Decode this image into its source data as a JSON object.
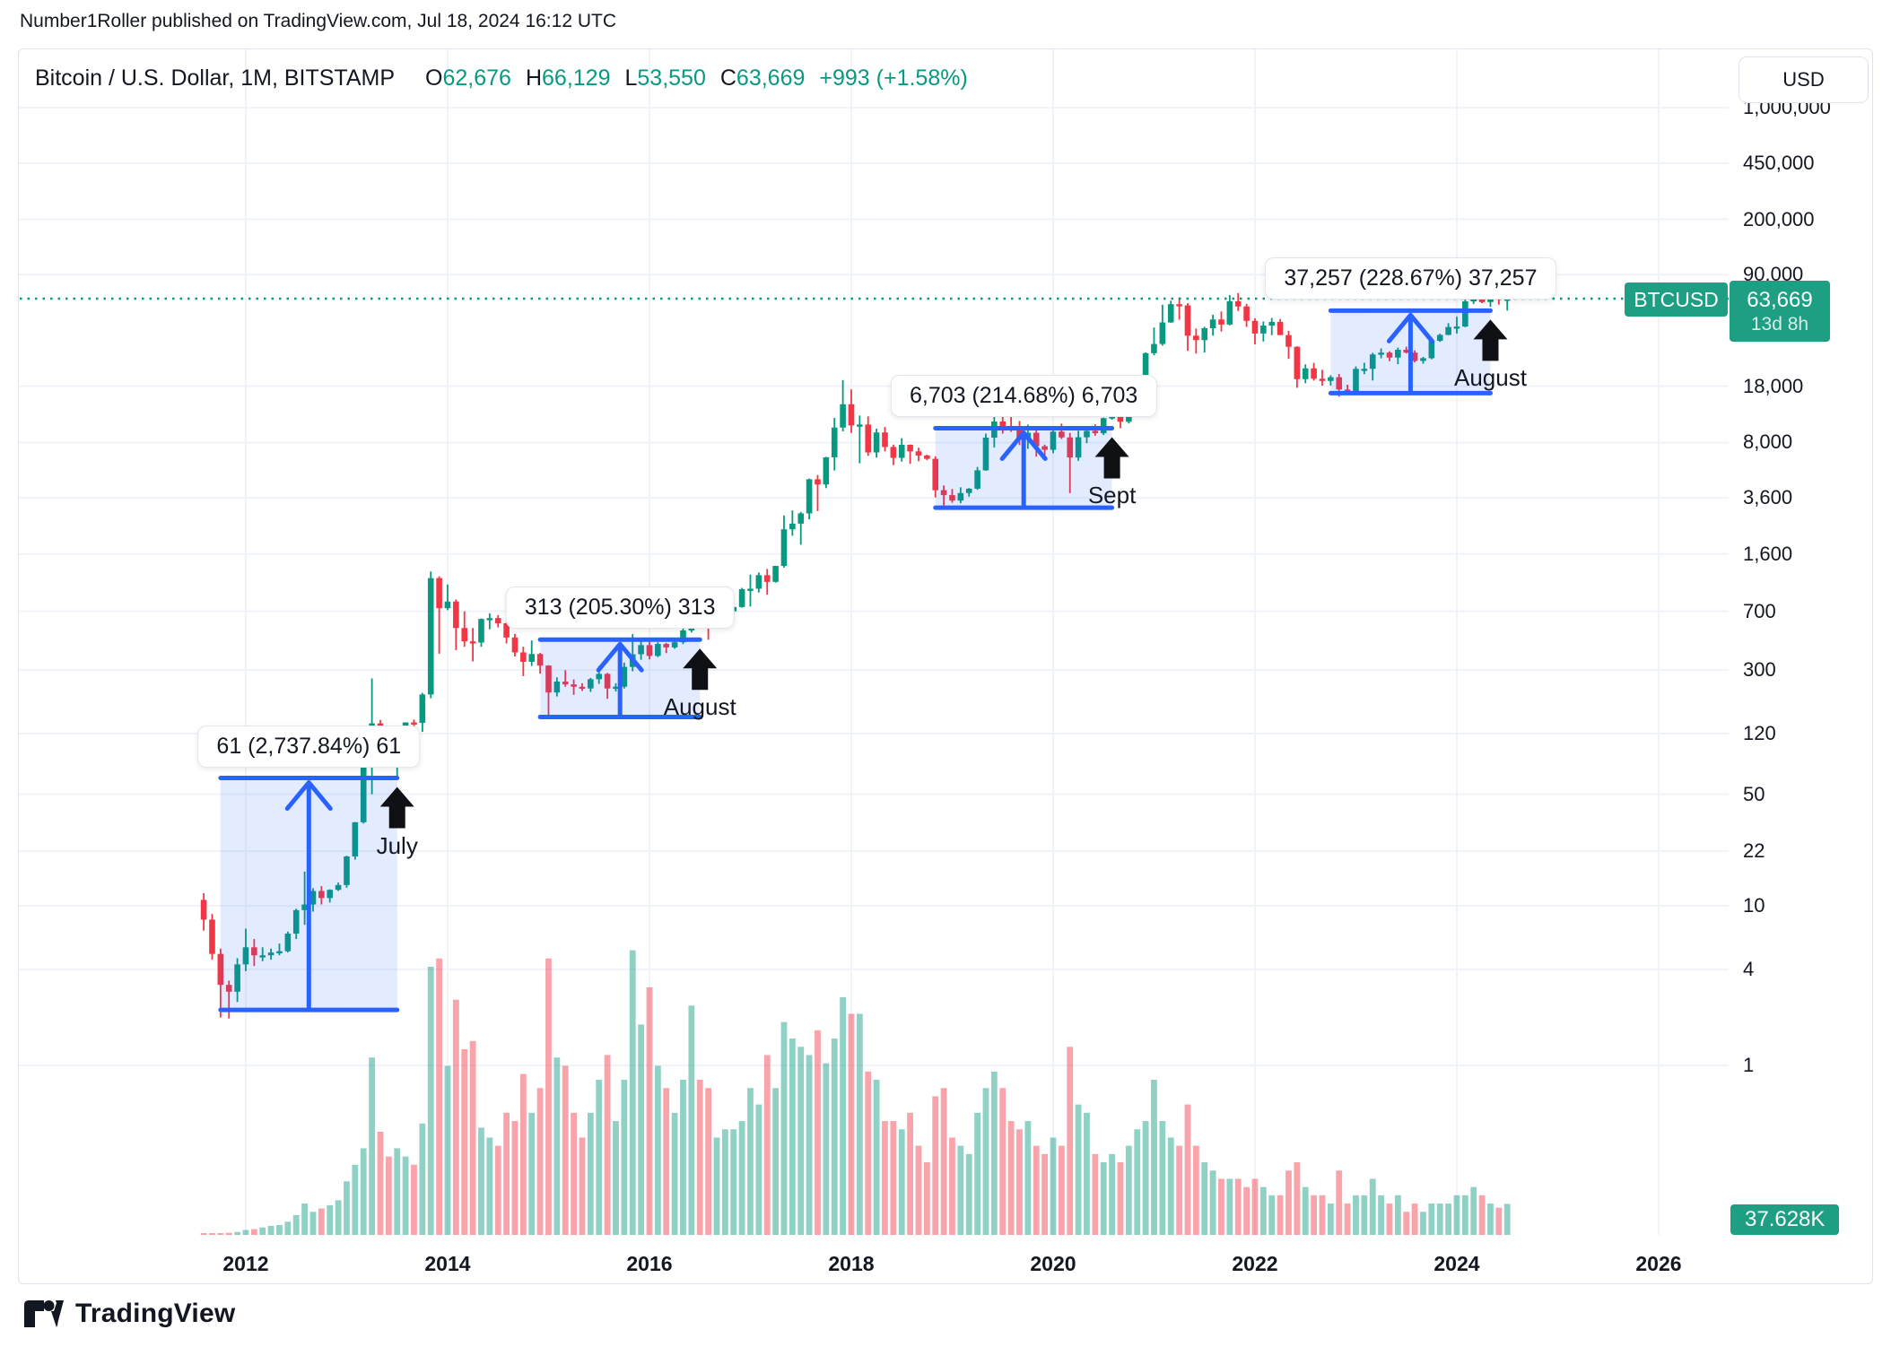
{
  "published_line": "Number1Roller published on TradingView.com, Jul 18, 2024 16:12 UTC",
  "legend": {
    "symbol_title": "Bitcoin / U.S. Dollar, 1M, BITSTAMP",
    "items": [
      {
        "k": "O",
        "v": "62,676"
      },
      {
        "k": "H",
        "v": "66,129"
      },
      {
        "k": "L",
        "v": "53,550"
      },
      {
        "k": "C",
        "v": "63,669"
      }
    ],
    "change": "+993 (+1.58%)"
  },
  "currency_button": "USD",
  "symbol_badge": "BTCUSD",
  "price_badge": {
    "price": "63,669",
    "countdown": "13d 8h"
  },
  "volume_badge": "37.628K",
  "footer": {
    "brand": "TradingView"
  },
  "colors": {
    "up": "#089981",
    "down": "#F23645",
    "vol_up": "rgba(8,153,129,0.45)",
    "vol_down": "rgba(242,54,69,0.45)",
    "measure_line": "#2962FF",
    "measure_fill": "rgba(41,98,255,0.13)",
    "badge": "#1E9E82",
    "grid": "#F0F3FA",
    "arrow_black": "#0F1115",
    "text": "#131722"
  },
  "chart_data": {
    "type": "candlestick+volume",
    "symbol": "BTCUSD",
    "exchange": "BITSTAMP",
    "interval": "1M",
    "scale": "logarithmic",
    "start_month": "2011-08",
    "current_price": 63669,
    "x_ticks": [
      {
        "label": "2012",
        "month": "2012-01"
      },
      {
        "label": "2014",
        "month": "2014-01"
      },
      {
        "label": "2016",
        "month": "2016-01"
      },
      {
        "label": "2018",
        "month": "2018-01"
      },
      {
        "label": "2020",
        "month": "2020-01"
      },
      {
        "label": "2022",
        "month": "2022-01"
      },
      {
        "label": "2024",
        "month": "2024-01"
      },
      {
        "label": "2026",
        "month": "2026-01"
      }
    ],
    "y_ticks": [
      {
        "v": 1000000,
        "label": "1,000,000"
      },
      {
        "v": 450000,
        "label": "450,000"
      },
      {
        "v": 200000,
        "label": "200,000"
      },
      {
        "v": 90000,
        "label": "90,000"
      },
      {
        "v": 18000,
        "label": "18,000"
      },
      {
        "v": 8000,
        "label": "8,000"
      },
      {
        "v": 3600,
        "label": "3,600"
      },
      {
        "v": 1600,
        "label": "1,600"
      },
      {
        "v": 700,
        "label": "700"
      },
      {
        "v": 300,
        "label": "300"
      },
      {
        "v": 120,
        "label": "120"
      },
      {
        "v": 50,
        "label": "50"
      },
      {
        "v": 22,
        "label": "22"
      },
      {
        "v": 10,
        "label": "10"
      },
      {
        "v": 4,
        "label": "4"
      },
      {
        "v": 1,
        "label": "1"
      }
    ],
    "annotations": [
      {
        "label": "61 (2,737.84%) 61",
        "from": "2011-10",
        "to": "2013-07",
        "low": 2.23,
        "high": 63.23,
        "arrow_label": "July"
      },
      {
        "label": "313 (205.30%) 313",
        "from": "2014-12",
        "to": "2016-07",
        "low": 152.5,
        "high": 465.5,
        "arrow_label": "August"
      },
      {
        "label": "6,703 (214.68%) 6,703",
        "from": "2018-11",
        "to": "2020-08",
        "low": 3122,
        "high": 9825,
        "arrow_label": "Sept"
      },
      {
        "label": "37,257 (228.67%) 37,257",
        "from": "2022-10",
        "to": "2024-05",
        "low": 16293,
        "high": 53550,
        "arrow_label": "August"
      }
    ],
    "candles": [
      [
        10.9,
        12,
        7,
        8.2
      ],
      [
        8.2,
        8.9,
        4.6,
        5
      ],
      [
        5,
        5.4,
        2,
        3.2
      ],
      [
        3.2,
        3.4,
        1.97,
        2.9
      ],
      [
        2.9,
        4.7,
        2.5,
        4.3
      ],
      [
        4.3,
        7.2,
        3.9,
        5.5
      ],
      [
        5.5,
        6.2,
        4.2,
        4.9
      ],
      [
        4.9,
        5.5,
        4.5,
        4.9
      ],
      [
        4.9,
        5.4,
        4.6,
        5.1
      ],
      [
        5.1,
        5.8,
        4.9,
        5.2
      ],
      [
        5.2,
        6.9,
        5.1,
        6.7
      ],
      [
        6.7,
        9.6,
        6.2,
        9.4
      ],
      [
        9.4,
        16.4,
        7.6,
        10.2
      ],
      [
        10.2,
        12.9,
        9.2,
        12.4
      ],
      [
        12.4,
        13.3,
        10.2,
        11.2
      ],
      [
        11.2,
        12.7,
        10.5,
        12.6
      ],
      [
        12.6,
        14,
        12.4,
        13.5
      ],
      [
        13.5,
        20.6,
        13,
        20.4
      ],
      [
        20.4,
        33.5,
        19.5,
        33.4
      ],
      [
        33.4,
        94,
        32.8,
        93
      ],
      [
        93,
        266,
        50,
        139
      ],
      [
        139,
        146,
        79,
        129
      ],
      [
        129,
        130,
        88,
        97
      ],
      [
        97,
        110,
        63,
        106
      ],
      [
        106,
        141,
        92,
        141
      ],
      [
        141,
        147,
        109,
        140
      ],
      [
        140,
        216,
        123,
        211
      ],
      [
        211,
        1242,
        200,
        1130
      ],
      [
        1130,
        1160,
        380,
        732
      ],
      [
        732,
        1030,
        712,
        806
      ],
      [
        806,
        830,
        400,
        550
      ],
      [
        550,
        700,
        420,
        454
      ],
      [
        454,
        550,
        340,
        446
      ],
      [
        446,
        632,
        420,
        627
      ],
      [
        627,
        680,
        540,
        635
      ],
      [
        635,
        662,
        555,
        589
      ],
      [
        589,
        600,
        440,
        480
      ],
      [
        480,
        505,
        365,
        387
      ],
      [
        387,
        420,
        275,
        338
      ],
      [
        338,
        460,
        318,
        378
      ],
      [
        378,
        384,
        285,
        320
      ],
      [
        320,
        322,
        152,
        217
      ],
      [
        217,
        270,
        205,
        254
      ],
      [
        254,
        300,
        236,
        244
      ],
      [
        244,
        262,
        210,
        236
      ],
      [
        236,
        248,
        222,
        230
      ],
      [
        230,
        268,
        219,
        263
      ],
      [
        263,
        318,
        246,
        284
      ],
      [
        284,
        288,
        198,
        230
      ],
      [
        230,
        248,
        220,
        236
      ],
      [
        236,
        334,
        230,
        314
      ],
      [
        314,
        504,
        295,
        377
      ],
      [
        377,
        470,
        348,
        430
      ],
      [
        430,
        464,
        350,
        368
      ],
      [
        368,
        448,
        362,
        437
      ],
      [
        437,
        444,
        383,
        416
      ],
      [
        416,
        470,
        408,
        448
      ],
      [
        448,
        550,
        436,
        531
      ],
      [
        531,
        780,
        516,
        673
      ],
      [
        673,
        706,
        605,
        624
      ],
      [
        624,
        630,
        465,
        575
      ],
      [
        575,
        629,
        562,
        609
      ],
      [
        609,
        718,
        594,
        700
      ],
      [
        700,
        755,
        665,
        745
      ],
      [
        745,
        982,
        738,
        963
      ],
      [
        963,
        1190,
        750,
        970
      ],
      [
        970,
        1225,
        918,
        1179
      ],
      [
        1179,
        1290,
        890,
        1071
      ],
      [
        1071,
        1350,
        1058,
        1347
      ],
      [
        1347,
        2790,
        1315,
        2286
      ],
      [
        2286,
        3000,
        2080,
        2480
      ],
      [
        2480,
        2935,
        1830,
        2875
      ],
      [
        2875,
        4750,
        2640,
        4703
      ],
      [
        4703,
        5000,
        2970,
        4360
      ],
      [
        4360,
        6500,
        4140,
        6451
      ],
      [
        6451,
        11400,
        5340,
        9916
      ],
      [
        9916,
        19666,
        9380,
        13880
      ],
      [
        13880,
        17200,
        9180,
        10221
      ],
      [
        10221,
        11790,
        5920,
        10360
      ],
      [
        10360,
        11650,
        6600,
        6928
      ],
      [
        6928,
        9760,
        6425,
        9240
      ],
      [
        9240,
        9990,
        7030,
        7494
      ],
      [
        7494,
        7750,
        5770,
        6404
      ],
      [
        6404,
        8500,
        6070,
        7729
      ],
      [
        7729,
        7770,
        5880,
        7033
      ],
      [
        7033,
        7410,
        6100,
        6625
      ],
      [
        6625,
        6700,
        6200,
        6317
      ],
      [
        6317,
        6550,
        3620,
        4017
      ],
      [
        4017,
        4300,
        3130,
        3742
      ],
      [
        3742,
        4090,
        3350,
        3457
      ],
      [
        3457,
        4190,
        3330,
        3854
      ],
      [
        3854,
        4140,
        3660,
        4105
      ],
      [
        4105,
        5620,
        4040,
        5350
      ],
      [
        5350,
        9090,
        5320,
        8574
      ],
      [
        8574,
        13880,
        7430,
        10818
      ],
      [
        10818,
        13130,
        9080,
        10085
      ],
      [
        10085,
        12320,
        9320,
        9630
      ],
      [
        9630,
        10900,
        7700,
        8308
      ],
      [
        8308,
        10350,
        7300,
        9199
      ],
      [
        9199,
        9550,
        6515,
        7569
      ],
      [
        7569,
        7750,
        6425,
        7193
      ],
      [
        7193,
        9570,
        6850,
        9350
      ],
      [
        9350,
        10500,
        8400,
        8599
      ],
      [
        8599,
        9170,
        3850,
        6438
      ],
      [
        6438,
        9460,
        6140,
        8620
      ],
      [
        8620,
        10070,
        7920,
        9448
      ],
      [
        9448,
        10380,
        8810,
        9137
      ],
      [
        9137,
        11450,
        8900,
        11351
      ],
      [
        11351,
        12480,
        11120,
        11655
      ],
      [
        11655,
        12050,
        9825,
        10776
      ],
      [
        10776,
        14100,
        10520,
        13797
      ],
      [
        13797,
        19900,
        13200,
        19698
      ],
      [
        19698,
        29300,
        17570,
        28990
      ],
      [
        28990,
        42000,
        28150,
        33108
      ],
      [
        33108,
        58350,
        32330,
        45164
      ],
      [
        45164,
        61800,
        44950,
        58763
      ],
      [
        58763,
        64900,
        46950,
        57720
      ],
      [
        57720,
        59600,
        30000,
        37298
      ],
      [
        37298,
        41300,
        28800,
        35026
      ],
      [
        35026,
        42400,
        29300,
        41553
      ],
      [
        41553,
        50500,
        37300,
        47130
      ],
      [
        47130,
        52900,
        39600,
        43823
      ],
      [
        43823,
        67000,
        43300,
        61299
      ],
      [
        61299,
        69000,
        53300,
        56882
      ],
      [
        56882,
        59100,
        42330,
        46211
      ],
      [
        46211,
        47990,
        32950,
        38498
      ],
      [
        38498,
        45820,
        34320,
        43160
      ],
      [
        43160,
        48200,
        37580,
        45525
      ],
      [
        45525,
        47450,
        37585,
        37630
      ],
      [
        37630,
        40020,
        26700,
        31801
      ],
      [
        31801,
        31980,
        17590,
        19926
      ],
      [
        19926,
        24670,
        18780,
        23293
      ],
      [
        23293,
        25200,
        19520,
        20048
      ],
      [
        20048,
        22800,
        18125,
        19425
      ],
      [
        19425,
        21080,
        18190,
        20490
      ],
      [
        20490,
        21480,
        15475,
        17165
      ],
      [
        17165,
        18390,
        16260,
        16542
      ],
      [
        16542,
        23960,
        16490,
        23125
      ],
      [
        23125,
        25250,
        21400,
        23142
      ],
      [
        23142,
        29180,
        19550,
        28465
      ],
      [
        28465,
        31050,
        26940,
        29233
      ],
      [
        29233,
        29820,
        25810,
        27210
      ],
      [
        27210,
        31400,
        24750,
        30472
      ],
      [
        30472,
        31800,
        28850,
        29230
      ],
      [
        29230,
        30180,
        25350,
        25932
      ],
      [
        25932,
        27480,
        24900,
        26962
      ],
      [
        26962,
        35150,
        26550,
        34657
      ],
      [
        34657,
        38415,
        34100,
        37712
      ],
      [
        37712,
        44700,
        37615,
        42265
      ],
      [
        42265,
        48970,
        38500,
        42580
      ],
      [
        42580,
        63585,
        42180,
        61198
      ],
      [
        61198,
        73794,
        59005,
        71333
      ],
      [
        71333,
        72780,
        59600,
        60637
      ],
      [
        60637,
        71950,
        56500,
        67530
      ],
      [
        67530,
        71980,
        58400,
        62678
      ],
      [
        62676,
        66129,
        53550,
        63669
      ]
    ],
    "volumes_k": [
      1,
      1.5,
      2,
      2.5,
      3.5,
      6,
      7,
      9,
      11,
      12,
      16,
      24,
      38,
      28,
      32,
      36,
      42,
      65,
      85,
      105,
      215,
      125,
      95,
      105,
      95,
      85,
      135,
      325,
      335,
      205,
      285,
      225,
      235,
      130,
      118,
      108,
      148,
      138,
      195,
      148,
      178,
      335,
      215,
      205,
      148,
      118,
      148,
      188,
      218,
      138,
      188,
      345,
      255,
      300,
      205,
      178,
      148,
      188,
      278,
      188,
      178,
      118,
      128,
      128,
      138,
      178,
      158,
      218,
      178,
      258,
      238,
      228,
      218,
      248,
      208,
      238,
      288,
      268,
      268,
      198,
      188,
      138,
      138,
      128,
      148,
      108,
      88,
      168,
      178,
      118,
      108,
      98,
      148,
      178,
      198,
      178,
      138,
      128,
      138,
      108,
      98,
      118,
      108,
      228,
      158,
      148,
      98,
      88,
      98,
      88,
      108,
      128,
      138,
      188,
      138,
      118,
      108,
      158,
      108,
      88,
      78,
      68,
      68,
      68,
      58,
      68,
      58,
      48,
      48,
      78,
      88,
      58,
      48,
      48,
      38,
      78,
      38,
      48,
      48,
      68,
      48,
      38,
      48,
      28,
      38,
      28,
      38,
      38,
      38,
      48,
      48,
      58,
      48,
      38,
      33,
      37.628
    ]
  }
}
